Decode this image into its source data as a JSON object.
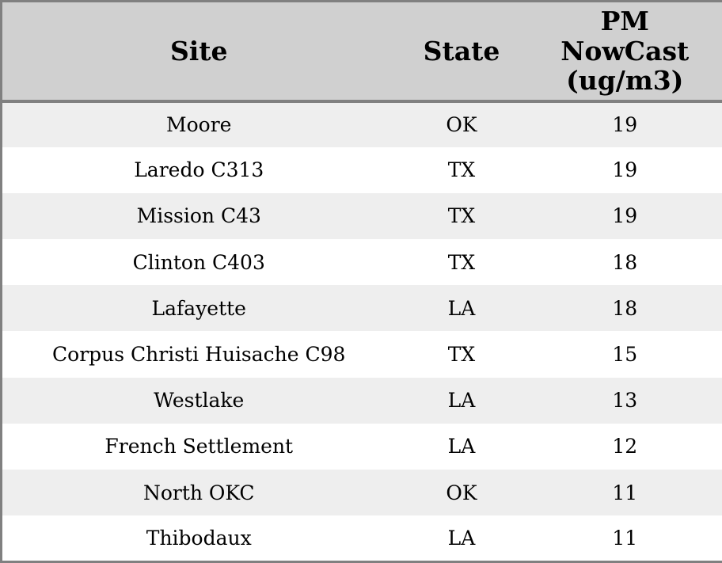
{
  "chart_data": {
    "type": "table",
    "columns": [
      {
        "key": "site",
        "label": "Site"
      },
      {
        "key": "state",
        "label": "State"
      },
      {
        "key": "pm_nowcast",
        "label": "PM\nNowCast\n(ug/m3)",
        "label_flat": "PM NowCast (ug/m3)",
        "unit": "ug/m3"
      }
    ],
    "rows": [
      {
        "site": "Moore",
        "state": "OK",
        "pm": "19"
      },
      {
        "site": "Laredo C313",
        "state": "TX",
        "pm": "19"
      },
      {
        "site": "Mission C43",
        "state": "TX",
        "pm": "19"
      },
      {
        "site": "Clinton C403",
        "state": "TX",
        "pm": "18"
      },
      {
        "site": "Lafayette",
        "state": "LA",
        "pm": "18"
      },
      {
        "site": "Corpus Christi Huisache C98",
        "state": "TX",
        "pm": "15"
      },
      {
        "site": "Westlake",
        "state": "LA",
        "pm": "13"
      },
      {
        "site": "French Settlement",
        "state": "LA",
        "pm": "12"
      },
      {
        "site": "North OKC",
        "state": "OK",
        "pm": "11"
      },
      {
        "site": "Thibodaux",
        "state": "LA",
        "pm": "11"
      }
    ],
    "layout": {
      "striped": true,
      "header_align": "center",
      "cell_align": "center"
    }
  },
  "theme": {
    "header_bg": "#d0d0d0",
    "row_stripe_bg": "#eeeeee",
    "row_bg": "#ffffff",
    "border_color": "#808080",
    "text_color": "#000000"
  }
}
